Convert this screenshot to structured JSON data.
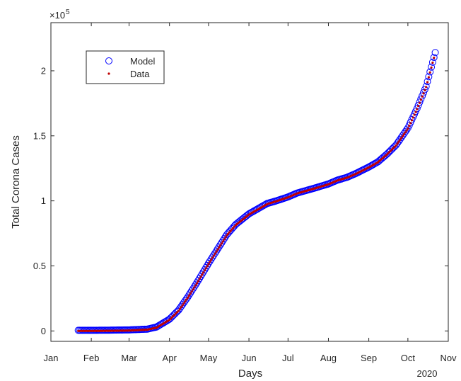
{
  "chart_data": {
    "type": "scatter",
    "xlabel": "Days",
    "ylabel": "Total Corona Cases",
    "y_exponent_label": "×10",
    "y_exponent": "5",
    "year_label": "2020",
    "x_ticks": [
      "Jan",
      "Feb",
      "Mar",
      "Apr",
      "May",
      "Jun",
      "Jul",
      "Aug",
      "Sep",
      "Oct",
      "Nov"
    ],
    "x_tick_dates": [
      "2020-01-01",
      "2020-02-01",
      "2020-03-01",
      "2020-04-01",
      "2020-05-01",
      "2020-06-01",
      "2020-07-01",
      "2020-08-01",
      "2020-09-01",
      "2020-10-01",
      "2020-11-01"
    ],
    "y_ticks": [
      "0",
      "0.5",
      "1",
      "1.5",
      "2"
    ],
    "y_tick_values": [
      0,
      0.5,
      1,
      1.5,
      2
    ],
    "xlim": [
      "2020-01-01",
      "2020-11-01"
    ],
    "ylim": [
      -0.08,
      2.37
    ],
    "y_units": "x 10^5 cases",
    "legend_position": "top-left",
    "grid": false,
    "series": [
      {
        "name": "Model",
        "marker": "circle",
        "color": "#0000ff",
        "x": [
          "2020-01-22",
          "2020-02-01",
          "2020-02-15",
          "2020-03-01",
          "2020-03-15",
          "2020-03-22",
          "2020-04-01",
          "2020-04-08",
          "2020-04-15",
          "2020-04-22",
          "2020-05-01",
          "2020-05-08",
          "2020-05-15",
          "2020-05-22",
          "2020-06-01",
          "2020-06-08",
          "2020-06-15",
          "2020-06-22",
          "2020-07-01",
          "2020-07-08",
          "2020-07-15",
          "2020-07-22",
          "2020-08-01",
          "2020-08-08",
          "2020-08-15",
          "2020-08-22",
          "2020-09-01",
          "2020-09-08",
          "2020-09-15",
          "2020-09-22",
          "2020-10-01",
          "2020-10-08",
          "2020-10-15",
          "2020-10-22"
        ],
        "y": [
          0.005,
          0.005,
          0.006,
          0.008,
          0.014,
          0.03,
          0.09,
          0.16,
          0.26,
          0.37,
          0.52,
          0.63,
          0.74,
          0.82,
          0.9,
          0.94,
          0.98,
          1.0,
          1.03,
          1.06,
          1.08,
          1.1,
          1.13,
          1.16,
          1.18,
          1.21,
          1.26,
          1.3,
          1.36,
          1.43,
          1.56,
          1.71,
          1.88,
          2.14
        ]
      },
      {
        "name": "Data",
        "marker": "dot",
        "color": "#c00000",
        "x": [
          "2020-01-22",
          "2020-02-01",
          "2020-02-15",
          "2020-03-01",
          "2020-03-15",
          "2020-03-22",
          "2020-04-01",
          "2020-04-08",
          "2020-04-15",
          "2020-04-22",
          "2020-05-01",
          "2020-05-08",
          "2020-05-15",
          "2020-05-22",
          "2020-06-01",
          "2020-06-08",
          "2020-06-15",
          "2020-06-22",
          "2020-07-01",
          "2020-07-08",
          "2020-07-15",
          "2020-07-22",
          "2020-08-01",
          "2020-08-08",
          "2020-08-15",
          "2020-08-22",
          "2020-09-01",
          "2020-09-08",
          "2020-09-15",
          "2020-09-22",
          "2020-10-01",
          "2020-10-08",
          "2020-10-15",
          "2020-10-21"
        ],
        "y": [
          0.0,
          0.0,
          0.001,
          0.003,
          0.01,
          0.025,
          0.085,
          0.155,
          0.255,
          0.365,
          0.515,
          0.625,
          0.735,
          0.815,
          0.895,
          0.935,
          0.975,
          0.997,
          1.027,
          1.057,
          1.077,
          1.097,
          1.127,
          1.157,
          1.177,
          1.207,
          1.257,
          1.297,
          1.357,
          1.427,
          1.555,
          1.705,
          1.875,
          2.1
        ]
      }
    ]
  }
}
